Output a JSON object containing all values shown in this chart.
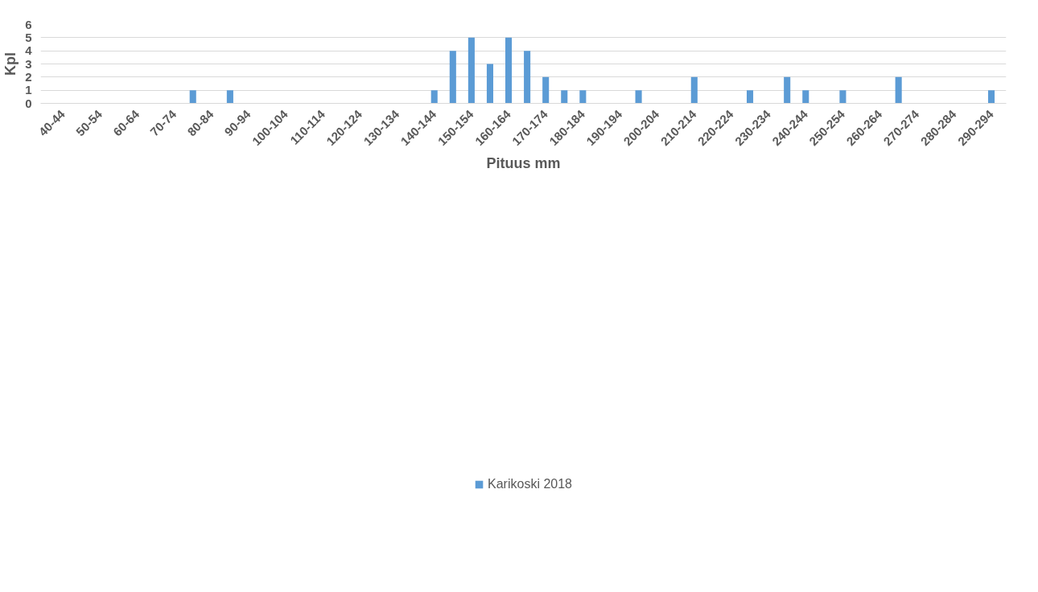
{
  "chart_data": {
    "type": "bar",
    "xlabel": "Pituus mm",
    "ylabel": "Kpl",
    "categories": [
      "40-44",
      null,
      "50-54",
      null,
      "60-64",
      null,
      "70-74",
      null,
      "80-84",
      null,
      "90-94",
      null,
      "100-104",
      null,
      "110-114",
      null,
      "120-124",
      null,
      "130-134",
      null,
      "140-144",
      null,
      "150-154",
      null,
      "160-164",
      null,
      "170-174",
      null,
      "180-184",
      null,
      "190-194",
      null,
      "200-204",
      null,
      "210-214",
      null,
      "220-224",
      null,
      "230-234",
      null,
      "240-244",
      null,
      "250-254",
      null,
      "260-264",
      null,
      "270-274",
      null,
      "280-284",
      null,
      "290-294"
    ],
    "series": [
      {
        "name": "Karikoski 2018",
        "color": "#5b9bd5",
        "values": [
          0,
          0,
          0,
          0,
          0,
          0,
          0,
          1,
          0,
          1,
          0,
          0,
          0,
          0,
          0,
          0,
          0,
          0,
          0,
          0,
          1,
          4,
          5,
          3,
          5,
          4,
          2,
          1,
          1,
          0,
          0,
          1,
          0,
          0,
          2,
          0,
          0,
          1,
          0,
          2,
          1,
          0,
          1,
          0,
          0,
          2,
          0,
          0,
          0,
          0,
          1
        ]
      }
    ],
    "ylim": [
      0,
      6
    ],
    "yticks": [
      0,
      1,
      2,
      3,
      4,
      5,
      6
    ],
    "grid": "y",
    "legend": "bottom"
  }
}
